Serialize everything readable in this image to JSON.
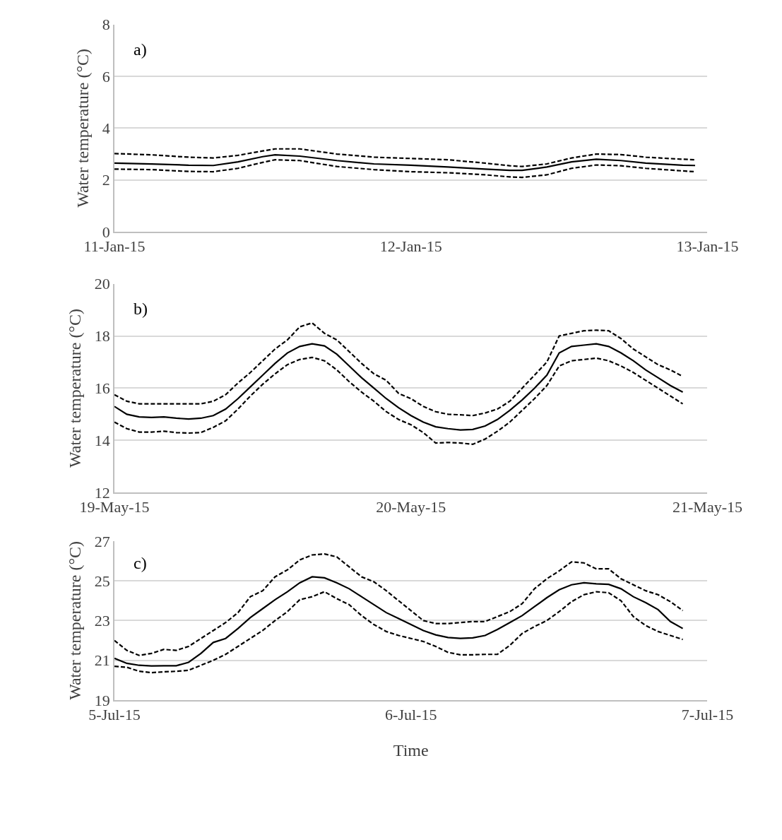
{
  "chart_data": [
    {
      "type": "line",
      "ylabel": "Water temperature (°C)",
      "annotations": [
        "a)"
      ],
      "grid": "y",
      "xlim": [
        "--01-11T00:00",
        "--01-13T00:00"
      ],
      "xticks": [
        {
          "value": "--01-11T00:00",
          "label": "11-Jan-15"
        },
        {
          "value": "--01-12T00:00",
          "label": "12-Jan-15"
        },
        {
          "value": "--01-13T00:00",
          "label": "13-Jan-15"
        }
      ],
      "ylim": [
        0,
        8
      ],
      "yticks": [
        0,
        2,
        4,
        6,
        8
      ],
      "x": [
        "--01-11T00:00",
        "--01-11T03:00",
        "--01-11T06:00",
        "--01-11T08:00",
        "--01-11T10:00",
        "--01-11T12:00",
        "--01-11T13:00",
        "--01-11T15:00",
        "--01-11T18:00",
        "--01-11T21:00",
        "--01-12T00:00",
        "--01-12T03:00",
        "--01-12T06:00",
        "--01-12T08:00",
        "--01-12T09:00",
        "--01-12T11:00",
        "--01-12T13:00",
        "--01-12T15:00",
        "--01-12T17:00",
        "--01-12T19:00",
        "--01-12T22:00",
        "--01-12T23:00"
      ],
      "series": [
        {
          "color": "#000000",
          "line_style": "solid",
          "values": [
            2.65,
            2.62,
            2.57,
            2.56,
            2.7,
            2.9,
            2.97,
            2.92,
            2.75,
            2.62,
            2.57,
            2.5,
            2.42,
            2.37,
            2.37,
            2.5,
            2.7,
            2.8,
            2.75,
            2.65,
            2.57,
            2.56
          ]
        },
        {
          "color": "#000000",
          "line_style": "dashed",
          "values": [
            3.02,
            2.97,
            2.88,
            2.85,
            2.95,
            3.12,
            3.2,
            3.2,
            3.0,
            2.88,
            2.83,
            2.78,
            2.65,
            2.55,
            2.52,
            2.62,
            2.85,
            3.0,
            2.98,
            2.88,
            2.8,
            2.78
          ]
        },
        {
          "color": "#000000",
          "line_style": "dashed",
          "values": [
            2.42,
            2.4,
            2.33,
            2.32,
            2.45,
            2.68,
            2.78,
            2.75,
            2.52,
            2.4,
            2.32,
            2.28,
            2.2,
            2.12,
            2.1,
            2.2,
            2.45,
            2.58,
            2.55,
            2.45,
            2.35,
            2.32
          ]
        }
      ]
    },
    {
      "type": "line",
      "ylabel": "Water temperature (°C)",
      "annotations": [
        "b)"
      ],
      "grid": "y",
      "xlim": [
        "--05-19T00:00",
        "--05-21T00:00"
      ],
      "xticks": [
        {
          "value": "--05-19T00:00",
          "label": "19-May-15"
        },
        {
          "value": "--05-20T00:00",
          "label": "20-May-15"
        },
        {
          "value": "--05-21T00:00",
          "label": "21-May-15"
        }
      ],
      "ylim": [
        12,
        20
      ],
      "yticks": [
        12,
        14,
        16,
        18,
        20
      ],
      "x": [
        "--05-19T00:00",
        "--05-19T01:00",
        "--05-19T02:00",
        "--05-19T03:00",
        "--05-19T04:00",
        "--05-19T05:00",
        "--05-19T06:00",
        "--05-19T07:00",
        "--05-19T08:00",
        "--05-19T09:00",
        "--05-19T10:00",
        "--05-19T11:00",
        "--05-19T12:00",
        "--05-19T13:00",
        "--05-19T14:00",
        "--05-19T15:00",
        "--05-19T16:00",
        "--05-19T17:00",
        "--05-19T18:00",
        "--05-19T19:00",
        "--05-19T20:00",
        "--05-19T21:00",
        "--05-19T22:00",
        "--05-19T23:00",
        "--05-20T00:00",
        "--05-20T01:00",
        "--05-20T02:00",
        "--05-20T03:00",
        "--05-20T04:00",
        "--05-20T05:00",
        "--05-20T06:00",
        "--05-20T07:00",
        "--05-20T08:00",
        "--05-20T09:00",
        "--05-20T10:00",
        "--05-20T11:00",
        "--05-20T12:00",
        "--05-20T13:00",
        "--05-20T14:00",
        "--05-20T15:00",
        "--05-20T16:00",
        "--05-20T17:00",
        "--05-20T18:00",
        "--05-20T19:00",
        "--05-20T20:00",
        "--05-20T21:00",
        "--05-20T22:00"
      ],
      "series": [
        {
          "color": "#000000",
          "line_style": "solid",
          "values": [
            15.3,
            15.0,
            14.9,
            14.88,
            14.9,
            14.85,
            14.82,
            14.85,
            14.95,
            15.2,
            15.6,
            16.05,
            16.5,
            16.95,
            17.35,
            17.6,
            17.7,
            17.62,
            17.3,
            16.85,
            16.4,
            16.0,
            15.6,
            15.25,
            14.95,
            14.7,
            14.52,
            14.45,
            14.4,
            14.42,
            14.55,
            14.8,
            15.15,
            15.55,
            16.0,
            16.5,
            17.35,
            17.6,
            17.65,
            17.7,
            17.6,
            17.35,
            17.05,
            16.7,
            16.4,
            16.1,
            15.85
          ]
        },
        {
          "color": "#000000",
          "line_style": "dashed",
          "values": [
            15.75,
            15.5,
            15.4,
            15.4,
            15.4,
            15.4,
            15.4,
            15.4,
            15.5,
            15.75,
            16.2,
            16.6,
            17.05,
            17.5,
            17.85,
            18.35,
            18.5,
            18.1,
            17.85,
            17.4,
            16.95,
            16.55,
            16.3,
            15.8,
            15.6,
            15.3,
            15.1,
            15.0,
            14.98,
            14.95,
            15.05,
            15.2,
            15.5,
            16.0,
            16.5,
            17.0,
            18.0,
            18.1,
            18.2,
            18.22,
            18.2,
            17.9,
            17.5,
            17.2,
            16.9,
            16.7,
            16.45
          ]
        },
        {
          "color": "#000000",
          "line_style": "dashed",
          "values": [
            14.7,
            14.45,
            14.32,
            14.32,
            14.35,
            14.3,
            14.28,
            14.3,
            14.5,
            14.75,
            15.2,
            15.7,
            16.15,
            16.55,
            16.9,
            17.1,
            17.18,
            17.05,
            16.7,
            16.25,
            15.85,
            15.5,
            15.1,
            14.8,
            14.6,
            14.3,
            13.9,
            13.92,
            13.9,
            13.85,
            14.05,
            14.35,
            14.7,
            15.15,
            15.6,
            16.1,
            16.85,
            17.05,
            17.1,
            17.15,
            17.05,
            16.85,
            16.6,
            16.3,
            16.0,
            15.7,
            15.4
          ]
        }
      ]
    },
    {
      "type": "line",
      "ylabel": "Water temperature (°C)",
      "xlabel": "Time",
      "annotations": [
        "c)"
      ],
      "grid": "y",
      "xlim": [
        "--07-05T00:00",
        "--07-07T00:00"
      ],
      "xticks": [
        {
          "value": "--07-05T00:00",
          "label": "5-Jul-15"
        },
        {
          "value": "--07-06T00:00",
          "label": "6-Jul-15"
        },
        {
          "value": "--07-07T00:00",
          "label": "7-Jul-15"
        }
      ],
      "ylim": [
        19,
        27
      ],
      "yticks": [
        19,
        21,
        23,
        25,
        27
      ],
      "x": [
        "--07-05T00:00",
        "--07-05T01:00",
        "--07-05T02:00",
        "--07-05T03:00",
        "--07-05T04:00",
        "--07-05T05:00",
        "--07-05T06:00",
        "--07-05T07:00",
        "--07-05T08:00",
        "--07-05T09:00",
        "--07-05T10:00",
        "--07-05T11:00",
        "--07-05T12:00",
        "--07-05T13:00",
        "--07-05T14:00",
        "--07-05T15:00",
        "--07-05T16:00",
        "--07-05T17:00",
        "--07-05T18:00",
        "--07-05T19:00",
        "--07-05T20:00",
        "--07-05T21:00",
        "--07-05T22:00",
        "--07-05T23:00",
        "--07-06T00:00",
        "--07-06T01:00",
        "--07-06T02:00",
        "--07-06T03:00",
        "--07-06T04:00",
        "--07-06T05:00",
        "--07-06T06:00",
        "--07-06T07:00",
        "--07-06T08:00",
        "--07-06T09:00",
        "--07-06T10:00",
        "--07-06T11:00",
        "--07-06T12:00",
        "--07-06T13:00",
        "--07-06T14:00",
        "--07-06T15:00",
        "--07-06T16:00",
        "--07-06T17:00",
        "--07-06T18:00",
        "--07-06T19:00",
        "--07-06T20:00",
        "--07-06T21:00",
        "--07-06T22:00"
      ],
      "series": [
        {
          "color": "#000000",
          "line_style": "solid",
          "values": [
            21.1,
            20.85,
            20.75,
            20.72,
            20.73,
            20.73,
            20.9,
            21.35,
            21.9,
            22.1,
            22.6,
            23.15,
            23.6,
            24.05,
            24.45,
            24.9,
            25.2,
            25.15,
            24.9,
            24.6,
            24.2,
            23.8,
            23.4,
            23.1,
            22.8,
            22.5,
            22.28,
            22.15,
            22.1,
            22.13,
            22.25,
            22.55,
            22.9,
            23.25,
            23.7,
            24.15,
            24.55,
            24.8,
            24.9,
            24.85,
            24.82,
            24.6,
            24.2,
            23.9,
            23.55,
            22.95,
            22.6
          ]
        },
        {
          "color": "#000000",
          "line_style": "dashed",
          "values": [
            22.0,
            21.5,
            21.25,
            21.35,
            21.55,
            21.5,
            21.7,
            22.1,
            22.5,
            22.9,
            23.4,
            24.2,
            24.5,
            25.2,
            25.55,
            26.05,
            26.3,
            26.35,
            26.2,
            25.7,
            25.2,
            24.95,
            24.5,
            24.0,
            23.5,
            23.0,
            22.85,
            22.85,
            22.9,
            22.95,
            22.95,
            23.2,
            23.45,
            23.85,
            24.6,
            25.1,
            25.5,
            25.95,
            25.9,
            25.6,
            25.6,
            25.1,
            24.8,
            24.5,
            24.3,
            23.95,
            23.5
          ]
        },
        {
          "color": "#000000",
          "line_style": "dashed",
          "values": [
            20.7,
            20.65,
            20.45,
            20.38,
            20.42,
            20.45,
            20.5,
            20.75,
            21.0,
            21.3,
            21.7,
            22.1,
            22.5,
            23.0,
            23.45,
            24.05,
            24.2,
            24.45,
            24.1,
            23.8,
            23.25,
            22.8,
            22.45,
            22.25,
            22.1,
            21.95,
            21.7,
            21.4,
            21.28,
            21.28,
            21.3,
            21.3,
            21.75,
            22.35,
            22.7,
            23.0,
            23.45,
            23.95,
            24.3,
            24.45,
            24.4,
            24.0,
            23.2,
            22.75,
            22.45,
            22.25,
            22.05
          ]
        }
      ]
    }
  ]
}
